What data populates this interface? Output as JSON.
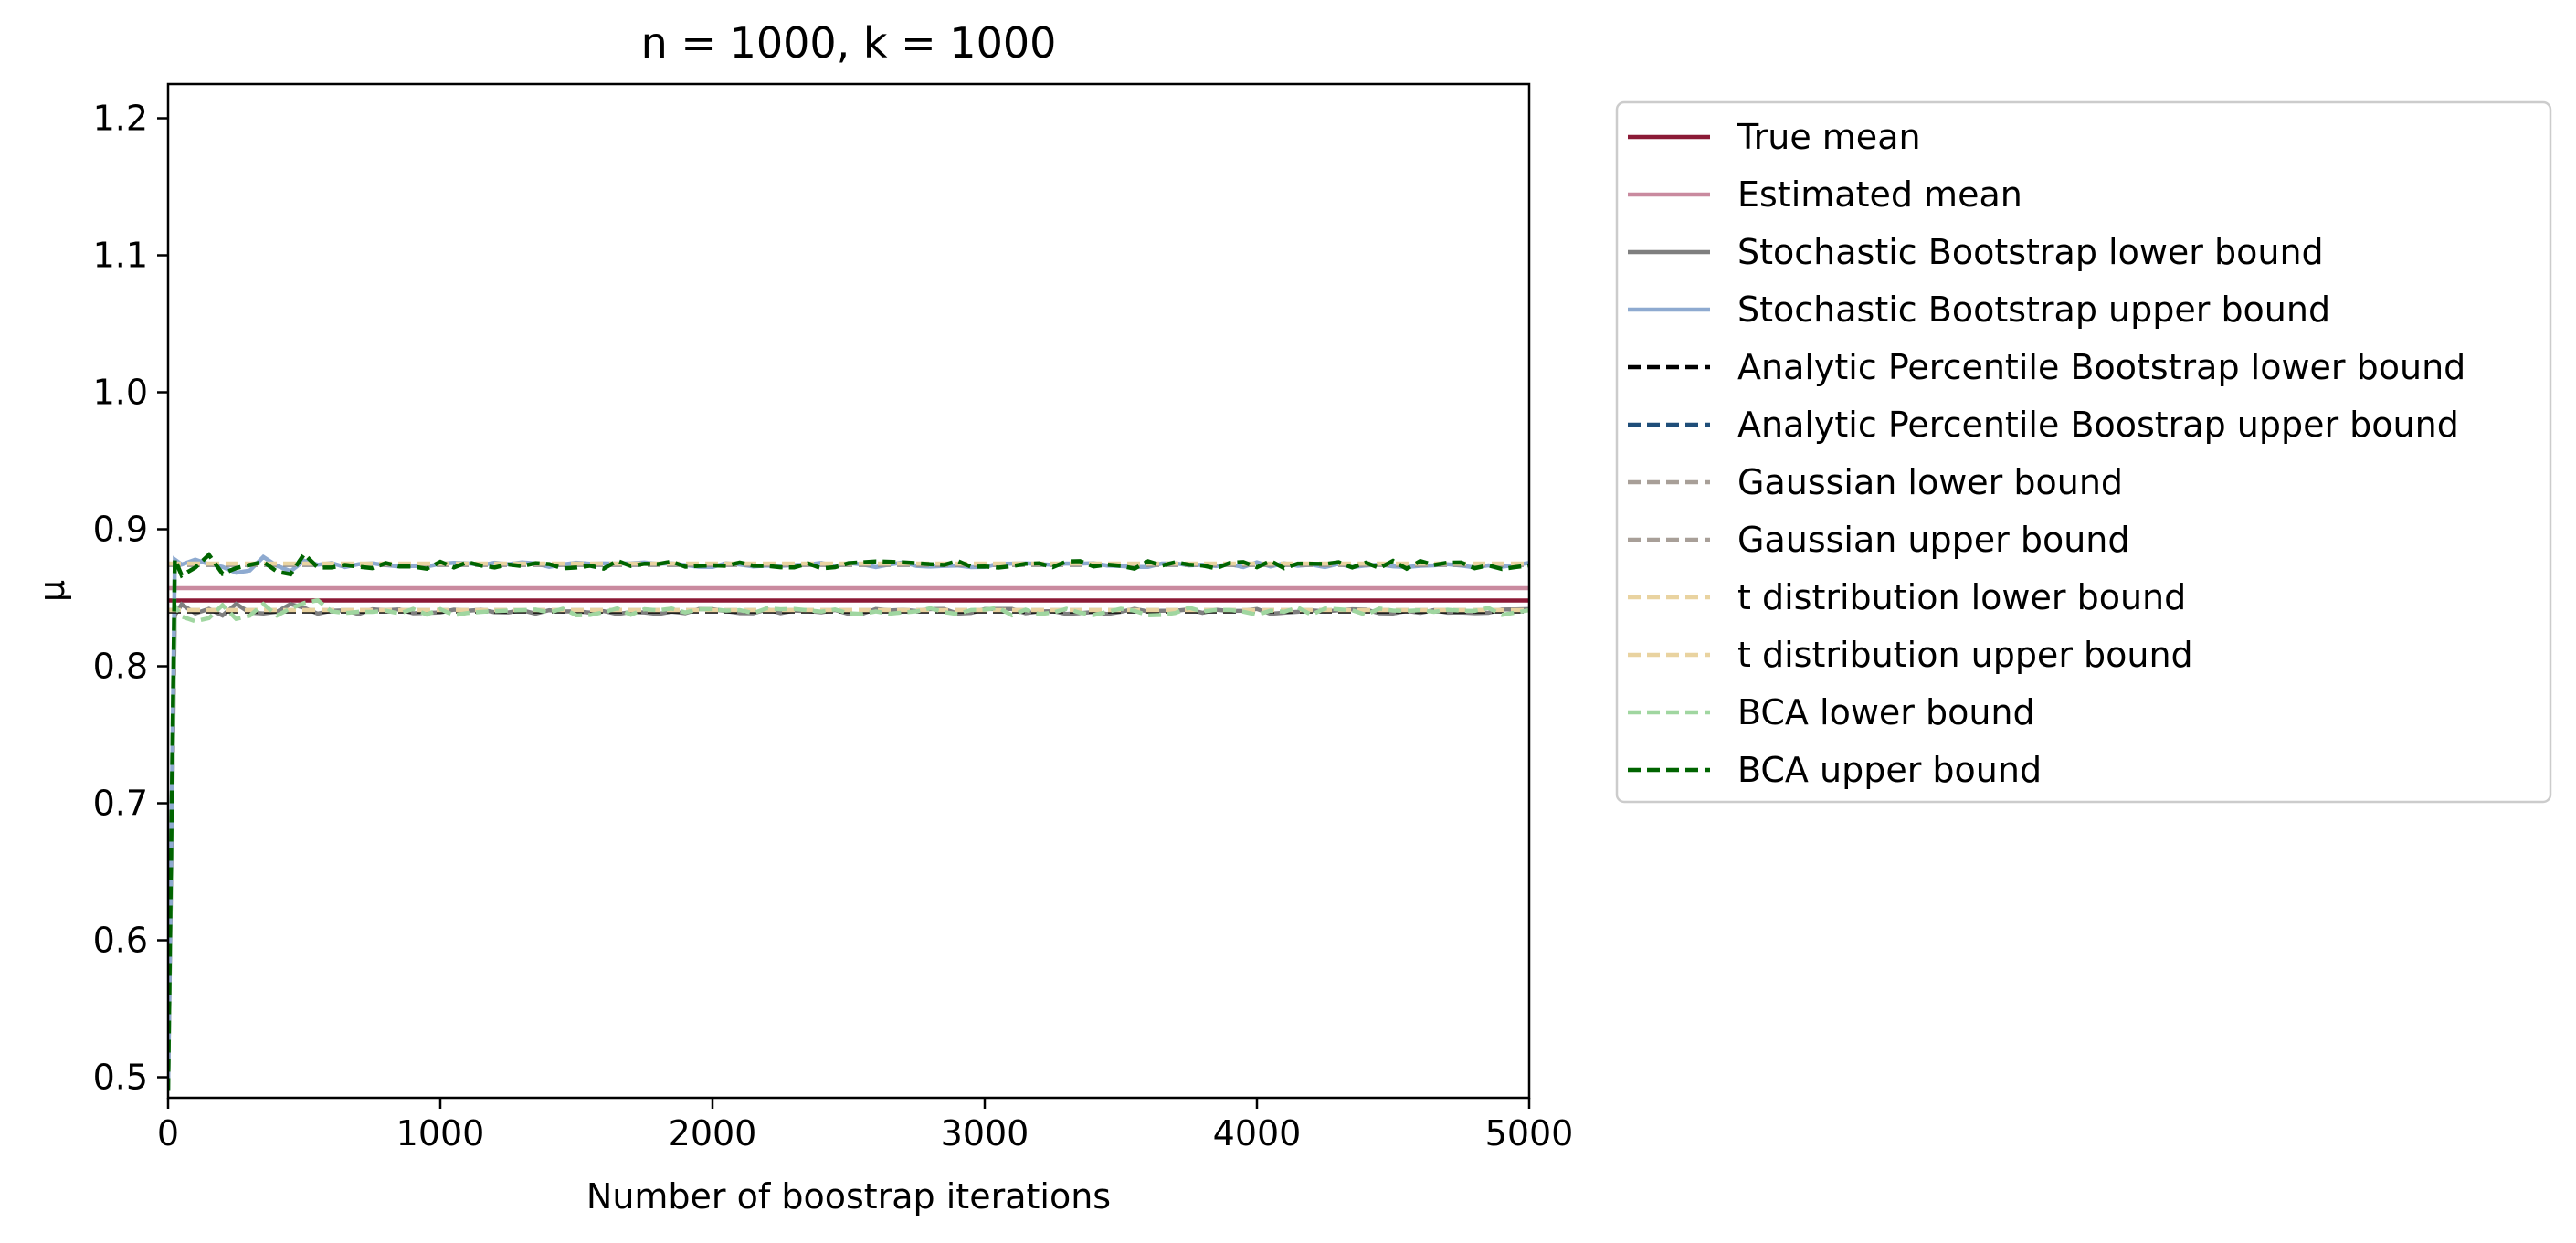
{
  "chart_data": {
    "type": "line",
    "title": "n = 1000, k = 1000",
    "xlabel": "Number of boostrap iterations",
    "ylabel": "μ",
    "xlim": [
      0,
      5000
    ],
    "ylim": [
      0.485,
      1.225
    ],
    "xticks": [
      0,
      1000,
      2000,
      3000,
      4000,
      5000
    ],
    "xtick_labels": [
      "0",
      "1000",
      "2000",
      "3000",
      "4000",
      "5000"
    ],
    "yticks": [
      0.5,
      0.6,
      0.7,
      0.8,
      0.9,
      1.0,
      1.1,
      1.2
    ],
    "ytick_labels": [
      "0.5",
      "0.6",
      "0.7",
      "0.8",
      "0.9",
      "1.0",
      "1.1",
      "1.2"
    ],
    "grid": false,
    "legend_position": "outside-right",
    "series": [
      {
        "name": "True mean",
        "color": "#8b1a36",
        "style": "solid",
        "kind": "constant",
        "value": 0.848
      },
      {
        "name": "Estimated mean",
        "color": "#c98a9f",
        "style": "solid",
        "kind": "constant",
        "value": 0.857
      },
      {
        "name": "Stochastic Bootstrap lower bound",
        "color": "#7f7f7f",
        "style": "solid",
        "kind": "converge",
        "start": 0.49,
        "value": 0.84,
        "noise": 0.002,
        "seed": 3
      },
      {
        "name": "Stochastic Bootstrap upper bound",
        "color": "#8eaad0",
        "style": "solid",
        "kind": "converge",
        "start": 0.49,
        "value": 0.874,
        "noise": 0.002,
        "seed": 5
      },
      {
        "name": "Analytic Percentile Bootstrap lower bound",
        "color": "#000000",
        "style": "dashed",
        "kind": "constant",
        "value": 0.84
      },
      {
        "name": "Analytic Percentile Boostrap upper bound",
        "color": "#1f4e79",
        "style": "dashed",
        "kind": "constant",
        "value": 0.874
      },
      {
        "name": "Gaussian lower bound",
        "color": "#a89f98",
        "style": "dashed",
        "kind": "constant",
        "value": 0.841
      },
      {
        "name": "Gaussian upper bound",
        "color": "#a89f98",
        "style": "dashed",
        "kind": "constant",
        "value": 0.874
      },
      {
        "name": "t distribution lower bound",
        "color": "#e9d3a0",
        "style": "dashed",
        "kind": "constant",
        "value": 0.841
      },
      {
        "name": "t distribution upper bound",
        "color": "#e9d3a0",
        "style": "dashed",
        "kind": "constant",
        "value": 0.875
      },
      {
        "name": "BCA lower bound",
        "color": "#a0d6a0",
        "style": "dashed",
        "kind": "converge",
        "start": 0.49,
        "value": 0.84,
        "noise": 0.003,
        "seed": 11
      },
      {
        "name": "BCA upper bound",
        "color": "#006400",
        "style": "dashed",
        "kind": "converge",
        "start": 0.49,
        "value": 0.874,
        "noise": 0.003,
        "seed": 17
      }
    ]
  }
}
